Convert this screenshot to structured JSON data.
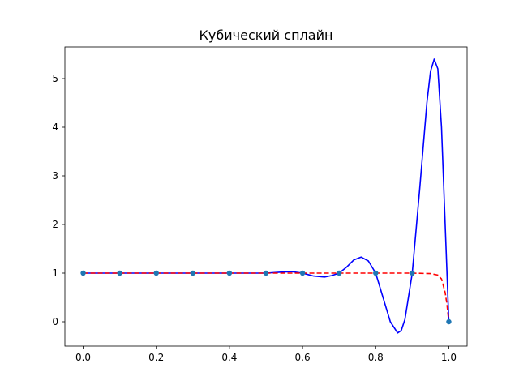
{
  "chart_data": {
    "type": "line",
    "title": "Кубический сплайн",
    "xlabel": "",
    "ylabel": "",
    "xlim": [
      -0.05,
      1.05
    ],
    "ylim": [
      -0.5,
      5.65
    ],
    "x_ticks": [
      0.0,
      0.2,
      0.4,
      0.6,
      0.8,
      1.0
    ],
    "x_tick_labels": [
      "0.0",
      "0.2",
      "0.4",
      "0.6",
      "0.8",
      "1.0"
    ],
    "y_ticks": [
      0,
      1,
      2,
      3,
      4,
      5
    ],
    "y_tick_labels": [
      "0",
      "1",
      "2",
      "3",
      "4",
      "5"
    ],
    "grid": false,
    "legend": "none",
    "series": [
      {
        "kind": "line",
        "style": "solid",
        "color": "#0000ff",
        "x": [
          0.0,
          0.1,
          0.2,
          0.3,
          0.4,
          0.45,
          0.5,
          0.54,
          0.57,
          0.6,
          0.63,
          0.66,
          0.68,
          0.7,
          0.72,
          0.74,
          0.76,
          0.78,
          0.8,
          0.82,
          0.84,
          0.86,
          0.87,
          0.88,
          0.9,
          0.92,
          0.94,
          0.95,
          0.96,
          0.97,
          0.98,
          0.99,
          1.0
        ],
        "y": [
          1.0,
          1.0,
          1.0,
          1.0,
          1.0,
          1.0,
          1.0,
          1.02,
          1.03,
          1.0,
          0.94,
          0.92,
          0.95,
          1.0,
          1.12,
          1.27,
          1.33,
          1.25,
          1.0,
          0.5,
          0.0,
          -0.23,
          -0.18,
          0.05,
          1.0,
          2.7,
          4.5,
          5.15,
          5.4,
          5.2,
          4.0,
          2.0,
          0.0
        ]
      },
      {
        "kind": "line",
        "style": "dashed",
        "color": "#ff0000",
        "x": [
          0.0,
          0.1,
          0.2,
          0.3,
          0.4,
          0.5,
          0.6,
          0.7,
          0.8,
          0.9,
          0.95,
          0.97,
          0.98,
          0.99,
          0.995,
          1.0
        ],
        "y": [
          1.0,
          1.0,
          1.0,
          1.0,
          1.0,
          1.0,
          1.0,
          1.0,
          1.0,
          1.0,
          0.99,
          0.96,
          0.88,
          0.6,
          0.35,
          0.0
        ]
      },
      {
        "kind": "scatter",
        "color": "#1f77b4",
        "x": [
          0.0,
          0.1,
          0.2,
          0.3,
          0.4,
          0.5,
          0.6,
          0.7,
          0.8,
          0.9,
          1.0
        ],
        "y": [
          1,
          1,
          1,
          1,
          1,
          1,
          1,
          1,
          1,
          1,
          0
        ]
      }
    ]
  }
}
